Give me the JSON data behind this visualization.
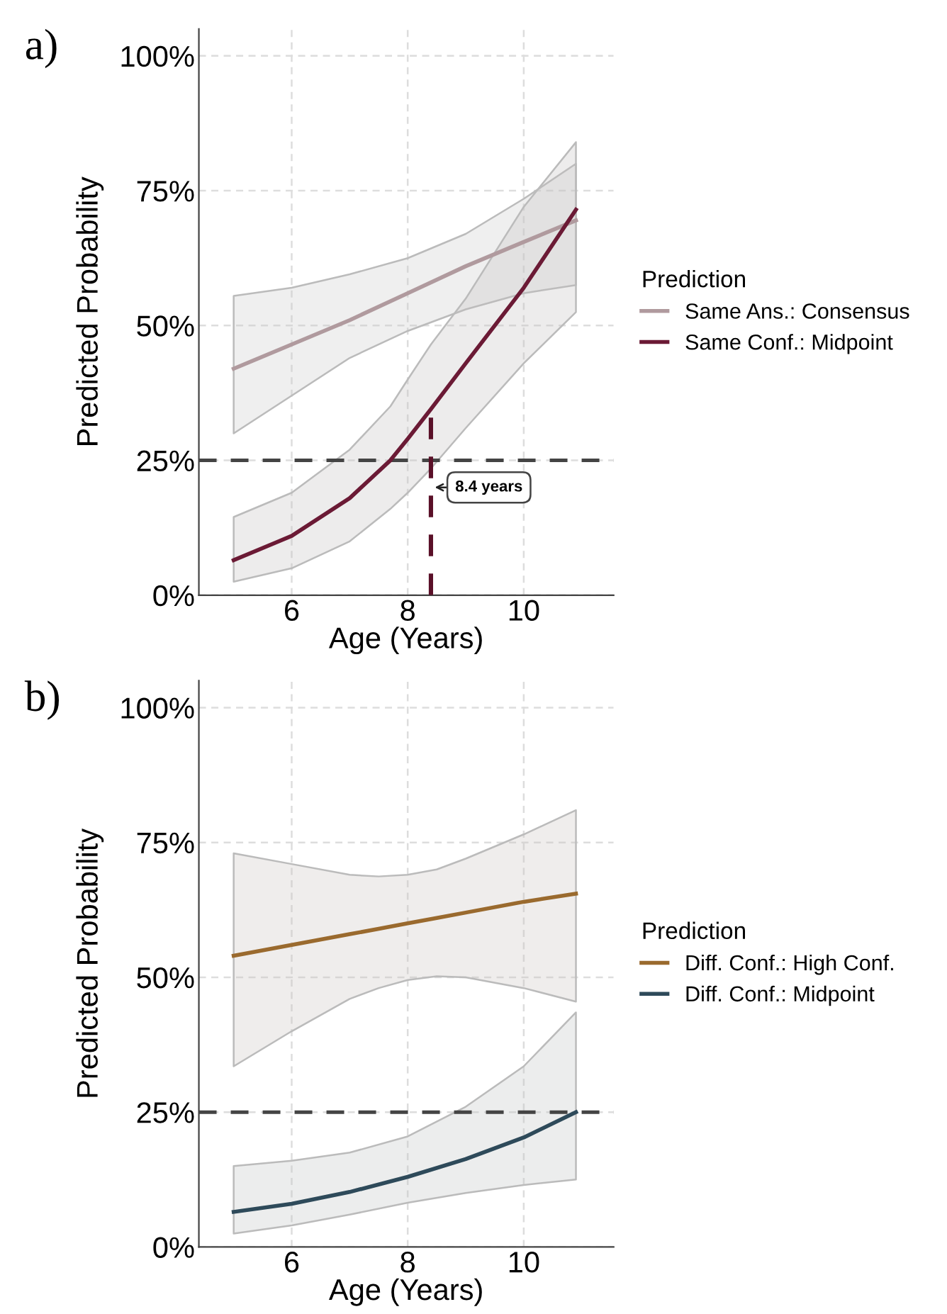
{
  "chart_data": [
    {
      "type": "line",
      "title": "a)",
      "xlabel": "Age (Years)",
      "ylabel": "Predicted Probability",
      "legend_title": "Prediction",
      "legend": "right",
      "grid": true,
      "line_style": "solid",
      "xlim": [
        4.4,
        11.55
      ],
      "xticks": [
        6,
        8,
        10
      ],
      "ylim": [
        0,
        105
      ],
      "yticks": [
        {
          "value": 0,
          "label": "0%"
        },
        {
          "value": 25,
          "label": "25%"
        },
        {
          "value": 50,
          "label": "50%"
        },
        {
          "value": 75,
          "label": "75%"
        },
        {
          "value": 100,
          "label": "100%"
        }
      ],
      "series": [
        {
          "name": "Same Ans.: Consensus",
          "color": "#b09a9e",
          "x": [
            5,
            6,
            7,
            8,
            9,
            10,
            10.9
          ],
          "values": [
            42,
            46.5,
            51,
            56,
            61,
            65.5,
            69.5
          ],
          "lower": [
            30,
            37,
            44,
            49,
            53,
            56,
            57.5
          ],
          "upper": [
            55.5,
            57,
            59.5,
            62.5,
            67,
            73.5,
            80
          ]
        },
        {
          "name": "Same Conf.: Midpoint",
          "color": "#6b1a35",
          "x": [
            5,
            6,
            7,
            7.7,
            8,
            8.4,
            9,
            10,
            10.9
          ],
          "values": [
            6.5,
            11,
            18,
            25,
            29,
            34.5,
            43,
            57,
            71.5
          ],
          "lower": [
            2.5,
            5,
            10,
            16,
            19,
            23.5,
            31,
            43,
            52.5
          ],
          "upper": [
            14.5,
            19,
            27,
            35,
            40,
            46.5,
            55,
            72,
            84
          ]
        }
      ],
      "ref_lines": [
        {
          "axis": "y",
          "value": 25,
          "color": "#444444",
          "line_style": "dashed"
        },
        {
          "axis": "x",
          "value": 8.4,
          "color": "#5a1028",
          "line_style": "dashed"
        }
      ],
      "annotations": [
        {
          "text": "8.4 years",
          "x": 8.4,
          "y": 20
        }
      ]
    },
    {
      "type": "line",
      "title": "b)",
      "xlabel": "Age (Years)",
      "ylabel": "Predicted Probability",
      "legend_title": "Prediction",
      "legend": "right",
      "grid": true,
      "line_style": "solid",
      "xlim": [
        4.4,
        11.55
      ],
      "xticks": [
        6,
        8,
        10
      ],
      "ylim": [
        0,
        105
      ],
      "yticks": [
        {
          "value": 0,
          "label": "0%"
        },
        {
          "value": 25,
          "label": "25%"
        },
        {
          "value": 50,
          "label": "50%"
        },
        {
          "value": 75,
          "label": "75%"
        },
        {
          "value": 100,
          "label": "100%"
        }
      ],
      "series": [
        {
          "name": "Diff. Conf.: High Conf.",
          "color": "#9a6a2e",
          "x": [
            5,
            6,
            7,
            7.5,
            8,
            8.5,
            9,
            10,
            10.9
          ],
          "values": [
            54,
            56,
            58,
            59,
            60,
            61,
            62,
            64,
            65.5
          ],
          "lower": [
            33.5,
            40,
            46,
            48,
            49.5,
            50.2,
            50,
            48,
            45.5
          ],
          "upper": [
            73,
            71,
            69,
            68.7,
            69,
            70,
            72,
            76.5,
            81
          ]
        },
        {
          "name": "Diff. Conf.: Midpoint",
          "color": "#2e4a5a",
          "x": [
            5,
            6,
            7,
            8,
            9,
            10,
            10.9
          ],
          "values": [
            6.5,
            8,
            10.2,
            13,
            16.3,
            20.3,
            25
          ],
          "lower": [
            2.5,
            4,
            6,
            8.2,
            10,
            11.5,
            12.5
          ],
          "upper": [
            15,
            16,
            17.5,
            20.5,
            26,
            33.5,
            43.5
          ]
        }
      ],
      "ref_lines": [
        {
          "axis": "y",
          "value": 25,
          "color": "#444444",
          "line_style": "dashed"
        }
      ]
    }
  ]
}
